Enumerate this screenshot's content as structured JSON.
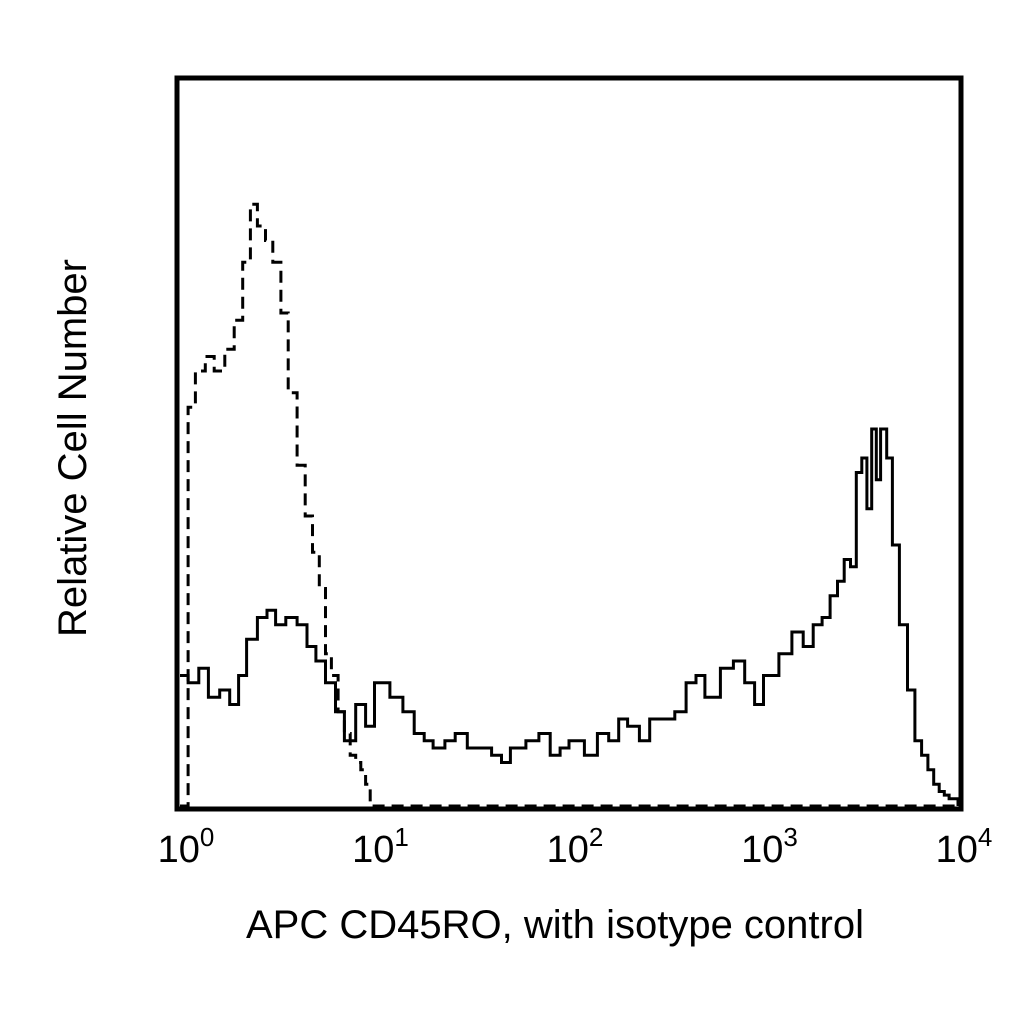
{
  "chart_data": {
    "type": "line",
    "title": "",
    "xlabel": "APC CD45RO, with isotype control",
    "ylabel": "Relative Cell Number",
    "x_scale": "log",
    "xlim": [
      1,
      10000
    ],
    "ylim": [
      0,
      1
    ],
    "grid": false,
    "legend": "none",
    "x_ticks": [
      {
        "value": 1,
        "base": "10",
        "exp": "0"
      },
      {
        "value": 10,
        "base": "10",
        "exp": "1"
      },
      {
        "value": 100,
        "base": "10",
        "exp": "2"
      },
      {
        "value": 1000,
        "base": "10",
        "exp": "3"
      },
      {
        "value": 10000,
        "base": "10",
        "exp": "4"
      }
    ],
    "series": [
      {
        "style": "dashed",
        "color": "#000000",
        "x": [
          1.0,
          1.1,
          1.2,
          1.35,
          1.5,
          1.7,
          1.9,
          2.1,
          2.3,
          2.5,
          2.75,
          3.0,
          3.3,
          3.6,
          4.0,
          4.4,
          4.8,
          5.2,
          5.6,
          6.0,
          6.5,
          7.0,
          7.5,
          8.0,
          8.5,
          9.0,
          9.5,
          10.0,
          20,
          100,
          1000,
          5000,
          10000
        ],
        "y": [
          0.0,
          0.55,
          0.6,
          0.62,
          0.6,
          0.63,
          0.67,
          0.75,
          0.83,
          0.8,
          0.78,
          0.75,
          0.68,
          0.57,
          0.47,
          0.4,
          0.35,
          0.3,
          0.21,
          0.18,
          0.13,
          0.1,
          0.07,
          0.06,
          0.05,
          0.03,
          0.0,
          0.0,
          0.0,
          0.0,
          0.0,
          0.0,
          0.0
        ]
      },
      {
        "style": "solid",
        "color": "#000000",
        "x": [
          1.0,
          1.1,
          1.25,
          1.4,
          1.6,
          1.8,
          2.0,
          2.2,
          2.5,
          2.8,
          3.1,
          3.5,
          4.0,
          4.5,
          5.0,
          5.6,
          6.3,
          7.0,
          8.0,
          9.0,
          10,
          12,
          14,
          16,
          18,
          20,
          23,
          26,
          30,
          35,
          40,
          45,
          50,
          60,
          70,
          80,
          90,
          100,
          120,
          140,
          160,
          180,
          200,
          230,
          260,
          300,
          350,
          400,
          450,
          500,
          600,
          700,
          800,
          900,
          1000,
          1200,
          1400,
          1600,
          1800,
          2000,
          2200,
          2400,
          2600,
          2800,
          3000,
          3200,
          3400,
          3600,
          3800,
          4000,
          4300,
          4600,
          5000,
          5500,
          6000,
          6500,
          7000,
          7500,
          8000,
          8500,
          9000,
          10000
        ],
        "y": [
          0.18,
          0.17,
          0.19,
          0.15,
          0.16,
          0.14,
          0.18,
          0.23,
          0.26,
          0.27,
          0.25,
          0.26,
          0.25,
          0.22,
          0.2,
          0.17,
          0.13,
          0.09,
          0.14,
          0.11,
          0.17,
          0.15,
          0.13,
          0.1,
          0.09,
          0.08,
          0.09,
          0.1,
          0.08,
          0.08,
          0.07,
          0.06,
          0.08,
          0.09,
          0.1,
          0.07,
          0.08,
          0.09,
          0.07,
          0.1,
          0.09,
          0.12,
          0.11,
          0.09,
          0.12,
          0.12,
          0.13,
          0.17,
          0.18,
          0.15,
          0.19,
          0.2,
          0.17,
          0.14,
          0.18,
          0.21,
          0.24,
          0.22,
          0.25,
          0.26,
          0.29,
          0.31,
          0.34,
          0.33,
          0.46,
          0.48,
          0.41,
          0.52,
          0.45,
          0.52,
          0.48,
          0.36,
          0.25,
          0.16,
          0.09,
          0.07,
          0.05,
          0.03,
          0.02,
          0.015,
          0.01,
          0.0
        ]
      }
    ]
  }
}
